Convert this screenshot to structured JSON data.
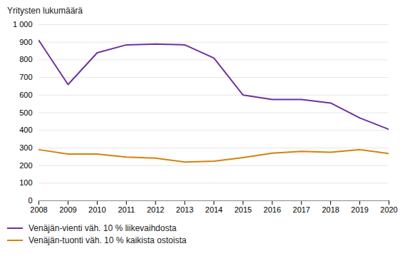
{
  "chart_data": {
    "type": "line",
    "ylabel": "Yritysten lukumäärä",
    "x": [
      2008,
      2009,
      2010,
      2011,
      2012,
      2013,
      2014,
      2015,
      2016,
      2017,
      2018,
      2019,
      2020
    ],
    "series": [
      {
        "name": "Venäjän-vienti väh. 10 % liikevaihdosta",
        "color": "#7030a0",
        "values": [
          910,
          660,
          840,
          885,
          890,
          885,
          810,
          600,
          575,
          575,
          555,
          470,
          405
        ]
      },
      {
        "name": "Venäjän-tuonti väh. 10 % kaikista ostoista",
        "color": "#d4820a",
        "values": [
          290,
          265,
          265,
          248,
          242,
          220,
          225,
          245,
          270,
          280,
          275,
          290,
          268
        ]
      }
    ],
    "xlim": [
      2008,
      2020
    ],
    "xticks": [
      2008,
      2009,
      2010,
      2011,
      2012,
      2013,
      2014,
      2015,
      2016,
      2017,
      2018,
      2019,
      2020
    ],
    "ylim": [
      0,
      1000
    ],
    "yticks": [
      0,
      100,
      200,
      300,
      400,
      500,
      600,
      700,
      800,
      900,
      {
        "value": 1000,
        "label": "1 000"
      }
    ],
    "grid": true,
    "legend": "bottom"
  }
}
